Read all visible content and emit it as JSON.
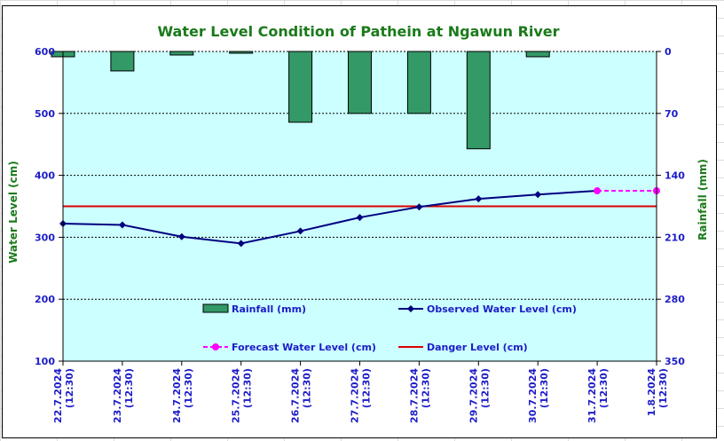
{
  "chart_data": {
    "type": "line",
    "title": "Water Level Condition of Pathein at Ngawun River",
    "ylabel": "Water Level (cm)",
    "y2label": "Rainfall (mm)",
    "ylim": [
      100,
      600
    ],
    "y_ticks": [
      "600",
      "500",
      "400",
      "300",
      "200",
      "100"
    ],
    "y2lim": [
      0,
      350
    ],
    "y2_reversed": true,
    "y2_ticks": [
      "0",
      "70",
      "140",
      "210",
      "280",
      "350"
    ],
    "categories": [
      [
        "22.7.2024",
        "(12:30)"
      ],
      [
        "23.7.2024",
        "(12:30)"
      ],
      [
        "24.7.2024",
        "(12:30)"
      ],
      [
        "25.7.2024",
        "(12:30)"
      ],
      [
        "26.7.2024",
        "(12:30)"
      ],
      [
        "27.7.2024",
        "(12:30)"
      ],
      [
        "28.7.2024",
        "(12:30)"
      ],
      [
        "29.7.2024",
        "(12:30)"
      ],
      [
        "30.7.2024",
        "(12:30)"
      ],
      [
        "31.7.2024",
        "(12:30)"
      ],
      [
        "1.8.2024",
        "(12:30)"
      ]
    ],
    "grid": true,
    "series": [
      {
        "name": "Rainfall (mm)",
        "type": "bar",
        "axis": "right",
        "color": "#339966",
        "values": [
          6,
          22,
          4,
          2,
          80,
          70,
          70,
          110,
          6,
          null,
          null
        ]
      },
      {
        "name": "Observed Water Level (cm)",
        "type": "line",
        "axis": "left",
        "color": "#000080",
        "marker": "diamond",
        "values": [
          322,
          320,
          301,
          290,
          310,
          332,
          349,
          362,
          369,
          375,
          null
        ]
      },
      {
        "name": "Forecast Water Level (cm)",
        "type": "line",
        "axis": "left",
        "color": "#ff00ff",
        "marker": "circle",
        "dashed": true,
        "values": [
          null,
          null,
          null,
          null,
          null,
          null,
          null,
          null,
          null,
          375,
          375
        ]
      },
      {
        "name": "Danger Level (cm)",
        "type": "line",
        "axis": "left",
        "color": "#dd0000",
        "values": [
          350,
          350,
          350,
          350,
          350,
          350,
          350,
          350,
          350,
          350,
          350
        ]
      }
    ],
    "plot_background": "#ccffff"
  }
}
